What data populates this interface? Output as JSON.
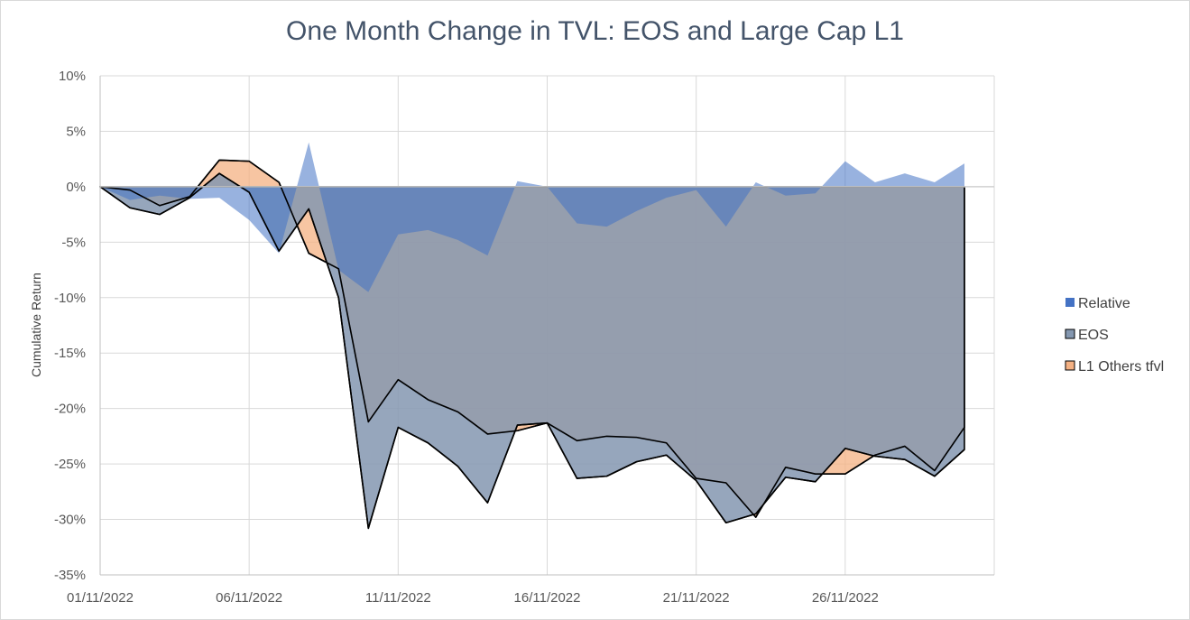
{
  "chart_data": {
    "type": "area",
    "title": "One Month Change in TVL: EOS and Large Cap L1",
    "xlabel": "",
    "ylabel": "Cumulative Return",
    "ylim": [
      -35,
      10
    ],
    "y_unit": "%",
    "ytick_labels": [
      "10%",
      "5%",
      "0%",
      "-5%",
      "-10%",
      "-15%",
      "-20%",
      "-25%",
      "-30%",
      "-35%"
    ],
    "xtick_labels": [
      "01/11/2022",
      "06/11/2022",
      "11/11/2022",
      "16/11/2022",
      "21/11/2022",
      "26/11/2022"
    ],
    "x": [
      "01/11/2022",
      "02/11/2022",
      "03/11/2022",
      "04/11/2022",
      "05/11/2022",
      "06/11/2022",
      "07/11/2022",
      "08/11/2022",
      "09/11/2022",
      "10/11/2022",
      "11/11/2022",
      "12/11/2022",
      "13/11/2022",
      "14/11/2022",
      "15/11/2022",
      "16/11/2022",
      "17/11/2022",
      "18/11/2022",
      "19/11/2022",
      "20/11/2022",
      "21/11/2022",
      "22/11/2022",
      "23/11/2022",
      "24/11/2022",
      "25/11/2022",
      "26/11/2022",
      "27/11/2022",
      "28/11/2022",
      "29/11/2022",
      "30/11/2022"
    ],
    "series": [
      {
        "name": "Relative",
        "color": "#4472c4",
        "values": [
          0,
          -1.2,
          -0.8,
          -1.1,
          -1.0,
          -3.0,
          -6.0,
          4.0,
          -7.5,
          -9.5,
          -4.3,
          -3.9,
          -4.8,
          -6.2,
          0.5,
          0.0,
          -3.3,
          -3.6,
          -2.2,
          -1.0,
          -0.3,
          -3.6,
          0.4,
          -0.8,
          -0.6,
          2.3,
          0.4,
          1.2,
          0.4,
          2.1
        ]
      },
      {
        "name": "EOS",
        "color": "#8497b0",
        "values": [
          0,
          -1.9,
          -2.5,
          -1.0,
          1.2,
          -0.5,
          -5.8,
          -2.0,
          -10.0,
          -30.8,
          -21.7,
          -23.1,
          -25.2,
          -28.5,
          -21.5,
          -21.3,
          -26.3,
          -26.1,
          -24.8,
          -24.2,
          -26.5,
          -30.3,
          -29.5,
          -26.2,
          -26.6,
          -23.6,
          -24.3,
          -24.6,
          -26.1,
          -23.7
        ]
      },
      {
        "name": "L1 Others tfvl",
        "color": "#f4b183",
        "values": [
          0,
          -0.3,
          -1.7,
          -0.9,
          2.4,
          2.3,
          0.4,
          -6.0,
          -7.4,
          -21.2,
          -17.4,
          -19.2,
          -20.3,
          -22.3,
          -22.0,
          -21.3,
          -22.9,
          -22.5,
          -22.6,
          -23.1,
          -26.3,
          -26.7,
          -29.8,
          -25.3,
          -25.9,
          -25.9,
          -24.2,
          -23.4,
          -25.6,
          -21.7
        ]
      }
    ],
    "grid": true,
    "legend_placement": "right"
  }
}
